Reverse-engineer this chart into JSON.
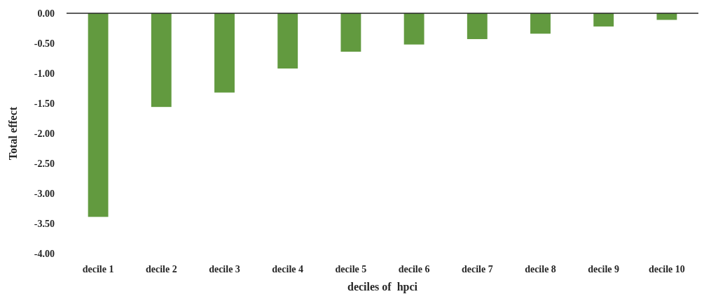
{
  "chart_data": {
    "type": "bar",
    "xlabel": "deciles of  hpci",
    "ylabel": "Total effect",
    "categories": [
      "decile 1",
      "decile 2",
      "decile 3",
      "decile 4",
      "decile 5",
      "decile 6",
      "decile 7",
      "decile 8",
      "decile 9",
      "decile 10"
    ],
    "values": [
      -3.39,
      -1.56,
      -1.32,
      -0.92,
      -0.64,
      -0.52,
      -0.43,
      -0.34,
      -0.22,
      -0.11
    ],
    "color": "#629a3f",
    "ylim": [
      -4,
      0
    ],
    "yticks": [
      {
        "value": 0,
        "label": "0.00"
      },
      {
        "value": -0.5,
        "label": "-0.50"
      },
      {
        "value": -1,
        "label": "-1.00"
      },
      {
        "value": -1.5,
        "label": "-1.50"
      },
      {
        "value": -2,
        "label": "-2.00"
      },
      {
        "value": -2.5,
        "label": "-2.50"
      },
      {
        "value": -3,
        "label": "-3.00"
      },
      {
        "value": -3.5,
        "label": "-3.50"
      },
      {
        "value": -4,
        "label": "-4.00"
      }
    ],
    "grid": false
  }
}
